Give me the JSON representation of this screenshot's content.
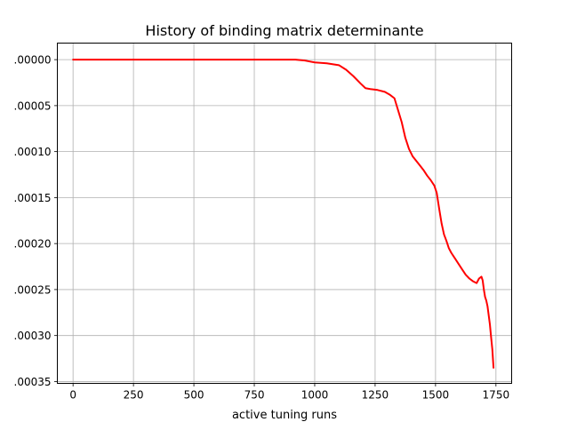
{
  "chart_data": {
    "type": "line",
    "title": "History of binding matrix determinante",
    "xlabel": "active tuning runs",
    "ylabel": "",
    "xlim": [
      -65,
      1815
    ],
    "ylim": [
      -0.000352,
      1.8e-05
    ],
    "xticks": [
      0,
      250,
      500,
      750,
      1000,
      1250,
      1500,
      1750
    ],
    "xtick_labels": [
      "0",
      "250",
      "500",
      "750",
      "1000",
      "1250",
      "1500",
      "1750"
    ],
    "yticks": [
      0.0,
      -5e-05,
      -0.0001,
      -0.00015,
      -0.0002,
      -0.00025,
      -0.0003,
      -0.00035
    ],
    "ytick_labels": [
      ".00000",
      ".00005",
      ".00010",
      ".00015",
      ".00020",
      ".00025",
      ".00030",
      ".00035"
    ],
    "grid": true,
    "series": [
      {
        "color": "#ff0000",
        "x": [
          0,
          100,
          200,
          300,
          400,
          500,
          600,
          700,
          800,
          880,
          920,
          960,
          1000,
          1050,
          1100,
          1130,
          1160,
          1190,
          1210,
          1230,
          1260,
          1290,
          1310,
          1330,
          1345,
          1360,
          1375,
          1390,
          1405,
          1420,
          1435,
          1450,
          1465,
          1480,
          1495,
          1505,
          1515,
          1525,
          1535,
          1545,
          1555,
          1565,
          1580,
          1595,
          1610,
          1625,
          1640,
          1655,
          1670,
          1680,
          1690,
          1695,
          1700,
          1705,
          1710,
          1715,
          1720,
          1725,
          1730,
          1735,
          1740
        ],
        "y": [
          0.0,
          0.0,
          0.0,
          0.0,
          0.0,
          0.0,
          0.0,
          0.0,
          0.0,
          0.0,
          0.0,
          -1e-06,
          -3e-06,
          -4e-06,
          -6e-06,
          -1.1e-05,
          -1.8e-05,
          -2.6e-05,
          -3.1e-05,
          -3.2e-05,
          -3.3e-05,
          -3.5e-05,
          -3.8e-05,
          -4.2e-05,
          -5.5e-05,
          -6.8e-05,
          -8.5e-05,
          -9.7e-05,
          -0.000105,
          -0.00011,
          -0.000115,
          -0.00012,
          -0.000126,
          -0.000131,
          -0.000137,
          -0.000145,
          -0.000162,
          -0.000178,
          -0.00019,
          -0.000197,
          -0.000205,
          -0.00021,
          -0.000216,
          -0.000222,
          -0.000228,
          -0.000234,
          -0.000238,
          -0.000241,
          -0.000243,
          -0.000238,
          -0.000236,
          -0.00024,
          -0.00025,
          -0.000258,
          -0.000262,
          -0.000268,
          -0.000278,
          -0.000288,
          -0.000302,
          -0.000315,
          -0.000335
        ]
      }
    ]
  }
}
